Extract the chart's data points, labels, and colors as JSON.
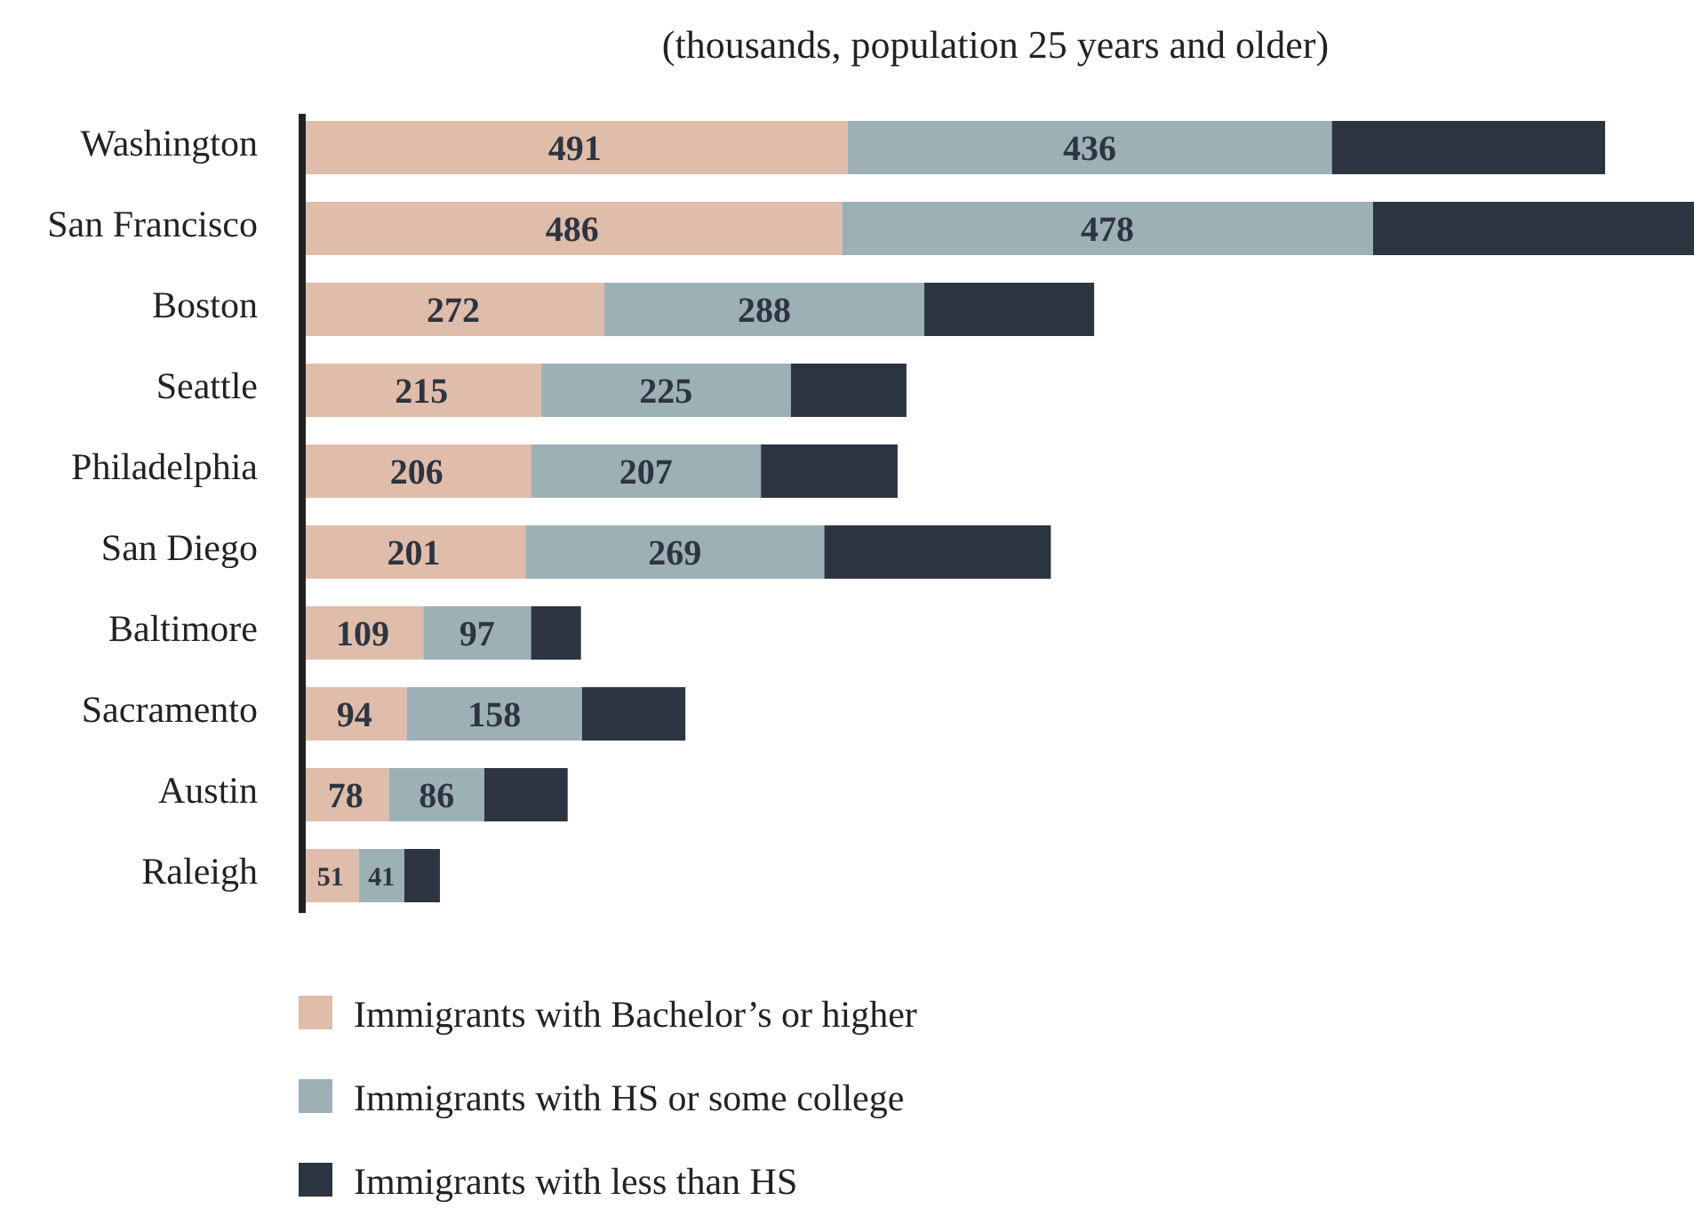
{
  "chart_data": {
    "type": "bar",
    "orientation": "horizontal",
    "stacked": true,
    "subtitle": "(thousands, population 25 years and older)",
    "categories": [
      "Washington",
      "San Francisco",
      "Boston",
      "Seattle",
      "Philadelphia",
      "San Diego",
      "Baltimore",
      "Sacramento",
      "Austin",
      "Raleigh"
    ],
    "series": [
      {
        "name": "Immigrants with Bachelor’s or higher",
        "color": "#e0bcab",
        "values": [
          491,
          486,
          272,
          215,
          206,
          201,
          109,
          94,
          78,
          51
        ],
        "value_labels": [
          "491",
          "486",
          "272",
          "215",
          "206",
          "201",
          "109",
          "94",
          "78",
          "51"
        ]
      },
      {
        "name": "Immigrants with HS or some college",
        "color": "#9db0b5",
        "values": [
          436,
          478,
          288,
          225,
          207,
          269,
          97,
          158,
          86,
          41
        ],
        "value_labels": [
          "436",
          "478",
          "288",
          "225",
          "207",
          "269",
          "97",
          "158",
          "86",
          "41"
        ]
      },
      {
        "name": "Immigrants with less than HS",
        "color": "#2c3540",
        "values": [
          246,
          289,
          153,
          104,
          123,
          204,
          45,
          93,
          75,
          32
        ]
      }
    ],
    "legend": "bottom"
  }
}
